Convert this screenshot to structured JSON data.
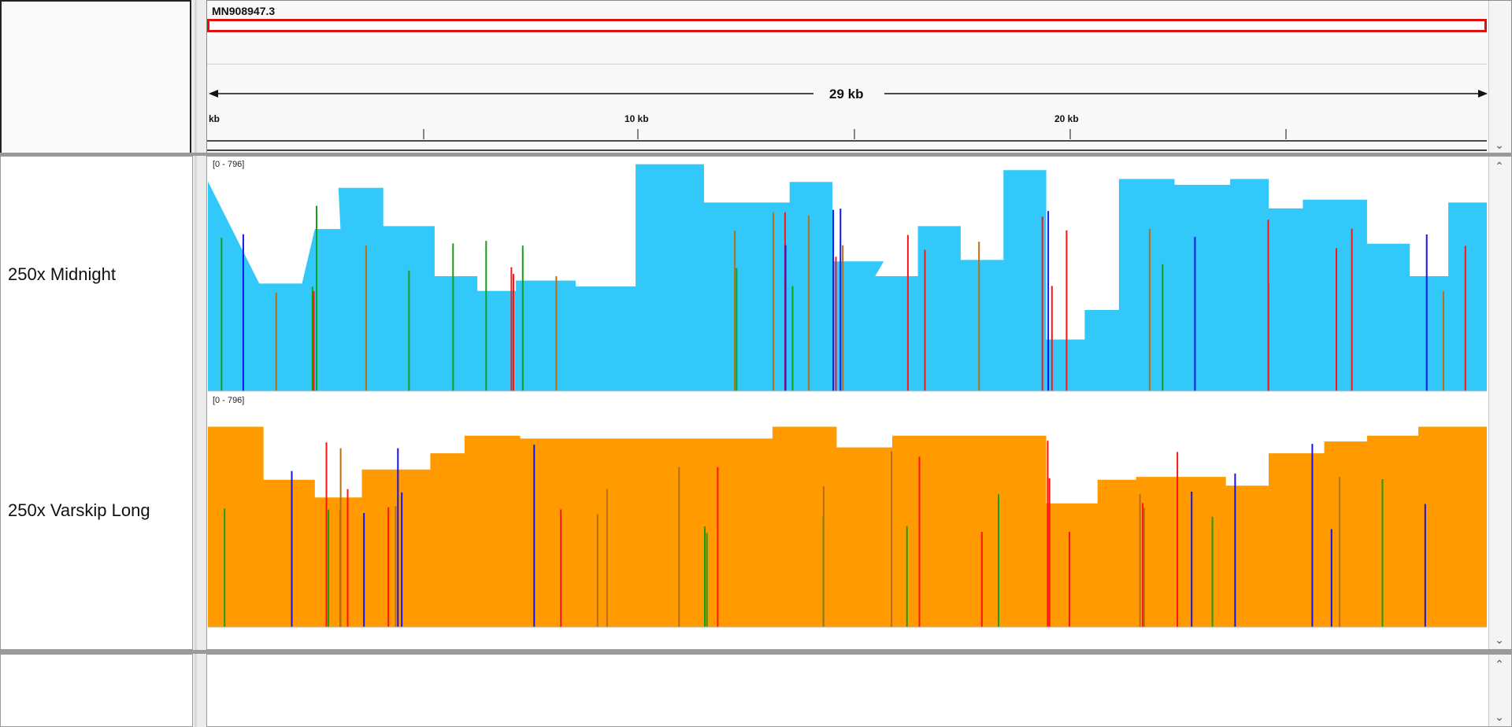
{
  "header": {
    "chromosome": "MN908947.3",
    "span_label": "29 kb",
    "ticks": [
      "kb",
      "10 kb",
      "20 kb"
    ]
  },
  "tracks": [
    {
      "label": "250x Midnight",
      "range": "[0 - 796]"
    },
    {
      "label": "250x Varskip Long",
      "range": "[0 - 796]"
    }
  ],
  "colors": {
    "midnight": "#33c8fa",
    "varskip": "#ff9a00",
    "A": "#14a014",
    "C": "#1414e6",
    "G": "#b86e14",
    "T": "#ff1414",
    "region_box": "#e01010"
  },
  "chart_data": [
    {
      "type": "area",
      "series": [
        {
          "name": "250x Midnight"
        }
      ],
      "ylim": [
        0,
        796
      ],
      "x_unit": "kb",
      "x_range": [
        0,
        29.9
      ],
      "values": [
        [
          0,
          712
        ],
        [
          1.2,
          365
        ],
        [
          2.2,
          365
        ],
        [
          2.5,
          550
        ],
        [
          3.1,
          550
        ],
        [
          3.05,
          690
        ],
        [
          4.1,
          690
        ],
        [
          4.1,
          560
        ],
        [
          5.3,
          560
        ],
        [
          5.3,
          390
        ],
        [
          6.3,
          390
        ],
        [
          6.3,
          340
        ],
        [
          7.2,
          340
        ],
        [
          7.2,
          375
        ],
        [
          8.6,
          375
        ],
        [
          8.6,
          355
        ],
        [
          10,
          355
        ],
        [
          10,
          770
        ],
        [
          11.6,
          770
        ],
        [
          11.6,
          640
        ],
        [
          13.6,
          640
        ],
        [
          13.6,
          710
        ],
        [
          14.6,
          710
        ],
        [
          14.6,
          440
        ],
        [
          15.8,
          440
        ],
        [
          15.6,
          390
        ],
        [
          16.6,
          390
        ],
        [
          16.6,
          560
        ],
        [
          17.6,
          560
        ],
        [
          17.6,
          445
        ],
        [
          18.6,
          445
        ],
        [
          18.6,
          750
        ],
        [
          19.6,
          750
        ],
        [
          19.6,
          175
        ],
        [
          20.5,
          175
        ],
        [
          20.5,
          275
        ],
        [
          21.3,
          275
        ],
        [
          21.3,
          720
        ],
        [
          22.6,
          720
        ],
        [
          22.6,
          700
        ],
        [
          23.9,
          700
        ],
        [
          23.9,
          720
        ],
        [
          24.8,
          720
        ],
        [
          24.8,
          620
        ],
        [
          25.6,
          620
        ],
        [
          25.6,
          650
        ],
        [
          27.1,
          650
        ],
        [
          27.1,
          500
        ],
        [
          28.1,
          500
        ],
        [
          28.1,
          390
        ],
        [
          29,
          390
        ],
        [
          29,
          640
        ],
        [
          29.9,
          640
        ]
      ]
    },
    {
      "type": "area",
      "series": [
        {
          "name": "250x Varskip Long"
        }
      ],
      "ylim": [
        0,
        796
      ],
      "x_unit": "kb",
      "x_range": [
        0,
        29.9
      ],
      "values": [
        [
          0,
          680
        ],
        [
          1.3,
          680
        ],
        [
          1.3,
          500
        ],
        [
          2.5,
          500
        ],
        [
          2.5,
          440
        ],
        [
          3.6,
          440
        ],
        [
          3.6,
          535
        ],
        [
          5.2,
          535
        ],
        [
          5.2,
          590
        ],
        [
          6,
          590
        ],
        [
          6,
          650
        ],
        [
          7.3,
          650
        ],
        [
          7.3,
          640
        ],
        [
          13.2,
          640
        ],
        [
          13.2,
          680
        ],
        [
          14.7,
          680
        ],
        [
          14.7,
          610
        ],
        [
          16,
          610
        ],
        [
          16,
          650
        ],
        [
          19.6,
          650
        ],
        [
          19.6,
          420
        ],
        [
          20.8,
          420
        ],
        [
          20.8,
          500
        ],
        [
          21.7,
          500
        ],
        [
          21.7,
          510
        ],
        [
          23.8,
          510
        ],
        [
          23.8,
          480
        ],
        [
          24.8,
          480
        ],
        [
          24.8,
          590
        ],
        [
          26.1,
          590
        ],
        [
          26.1,
          630
        ],
        [
          27.1,
          630
        ],
        [
          27.1,
          650
        ],
        [
          28.3,
          650
        ],
        [
          28.3,
          680
        ],
        [
          29.9,
          680
        ]
      ]
    }
  ]
}
